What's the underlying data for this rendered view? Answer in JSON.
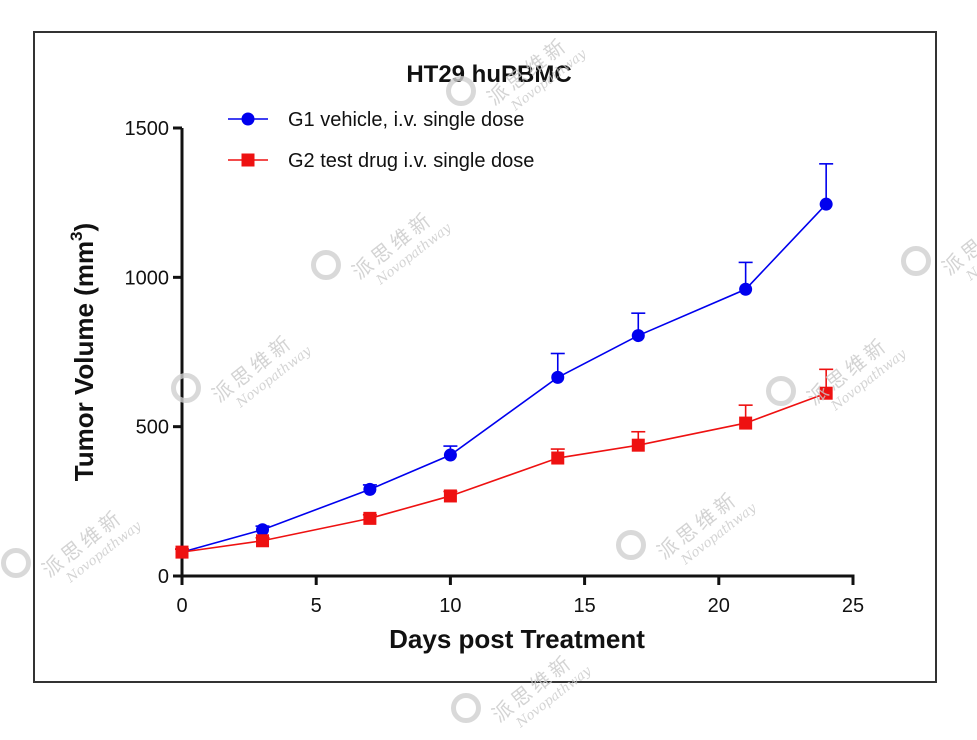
{
  "chart_data": {
    "type": "line",
    "title": "HT29 huPBMC",
    "xlabel": "Days post Treatment",
    "ylabel_main": "Tumor Volume (mm",
    "ylabel_sup": "3",
    "ylabel_end": ")",
    "xlim": [
      0,
      25
    ],
    "ylim": [
      0,
      1500
    ],
    "xticks": [
      0,
      5,
      10,
      15,
      20,
      25
    ],
    "yticks": [
      0,
      500,
      1000,
      1500
    ],
    "legend_position": "top-left",
    "grid": false,
    "series": [
      {
        "name": "G1 vehicle, i.v. single dose",
        "color": "#0000ee",
        "marker": "circle",
        "x": [
          0,
          3,
          7,
          10,
          14,
          17,
          21,
          24
        ],
        "y": [
          80,
          155,
          290,
          405,
          665,
          805,
          960,
          1245
        ],
        "err": [
          10,
          12,
          15,
          30,
          80,
          75,
          90,
          135
        ]
      },
      {
        "name": "G2 test drug i.v. single dose",
        "color": "#ee1111",
        "marker": "square",
        "x": [
          0,
          3,
          7,
          10,
          14,
          17,
          21,
          24
        ],
        "y": [
          80,
          118,
          193,
          268,
          395,
          438,
          512,
          612
        ],
        "err": [
          10,
          10,
          12,
          15,
          30,
          45,
          60,
          80
        ]
      }
    ]
  },
  "watermark": {
    "cn": "派思维新",
    "en": "Novopathway"
  }
}
